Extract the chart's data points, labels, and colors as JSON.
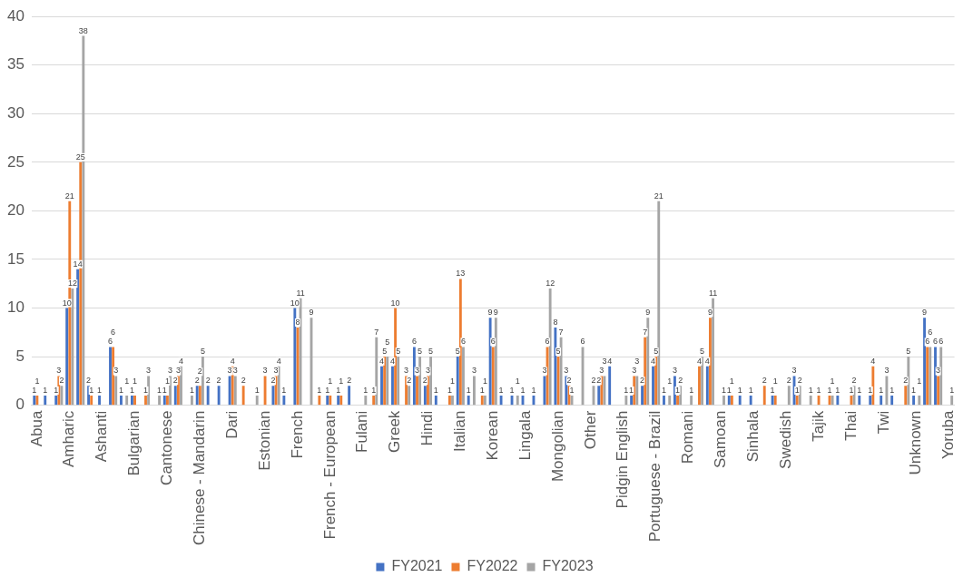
{
  "chart_data": {
    "type": "bar",
    "categories": [
      "Abua",
      null,
      null,
      "Amharic",
      null,
      null,
      "Ashanti",
      null,
      null,
      "Bulgarian",
      null,
      null,
      "Cantonese",
      null,
      null,
      "Chinese - Mandarin",
      null,
      null,
      "Dari",
      null,
      null,
      "Estonian",
      null,
      null,
      "French",
      null,
      null,
      "French - European",
      null,
      null,
      "Fulani",
      null,
      null,
      "Greek",
      null,
      null,
      "Hindi",
      null,
      null,
      "Italian",
      null,
      null,
      "Korean",
      null,
      null,
      "Lingala",
      null,
      null,
      "Mongolian",
      null,
      null,
      "Other",
      null,
      null,
      "Pidgin English",
      null,
      null,
      "Portuguese - Brazil",
      null,
      null,
      "Romani",
      null,
      null,
      "Samoan",
      null,
      null,
      "Sinhala",
      null,
      null,
      "Swedish",
      null,
      null,
      "Tajik",
      null,
      null,
      "Thai",
      null,
      null,
      "Twi",
      null,
      null,
      "Unknown",
      null,
      null,
      "Yoruba"
    ],
    "series": [
      {
        "name": "FY2021",
        "color": "#4472c4",
        "values": [
          1,
          1,
          1,
          10,
          14,
          2,
          1,
          6,
          1,
          1,
          null,
          null,
          1,
          2,
          null,
          2,
          2,
          2,
          3,
          null,
          null,
          null,
          2,
          1,
          10,
          null,
          null,
          1,
          1,
          2,
          null,
          null,
          4,
          4,
          null,
          6,
          2,
          1,
          null,
          5,
          1,
          null,
          9,
          1,
          1,
          1,
          1,
          3,
          8,
          3,
          null,
          null,
          2,
          4,
          null,
          1,
          2,
          4,
          1,
          3,
          null,
          null,
          4,
          null,
          1,
          1,
          1,
          null,
          1,
          null,
          3,
          null,
          null,
          null,
          1,
          null,
          1,
          1,
          1,
          1,
          null,
          1,
          9,
          6,
          null
        ]
      },
      {
        "name": "FY2022",
        "color": "#ed7d31",
        "values": [
          1,
          null,
          3,
          21,
          25,
          1,
          null,
          6,
          null,
          1,
          1,
          null,
          1,
          3,
          null,
          2,
          null,
          null,
          4,
          2,
          null,
          3,
          3,
          null,
          8,
          null,
          1,
          1,
          1,
          null,
          null,
          1,
          5,
          10,
          3,
          3,
          3,
          null,
          1,
          13,
          null,
          1,
          6,
          null,
          null,
          null,
          null,
          6,
          5,
          2,
          null,
          null,
          3,
          null,
          null,
          3,
          7,
          5,
          null,
          1,
          null,
          4,
          9,
          null,
          1,
          null,
          null,
          2,
          1,
          null,
          1,
          null,
          1,
          1,
          null,
          1,
          null,
          4,
          null,
          null,
          2,
          null,
          6,
          3,
          null
        ]
      },
      {
        "name": "FY2023",
        "color": "#a5a5a5",
        "values": [
          null,
          null,
          2,
          12,
          38,
          null,
          null,
          3,
          1,
          null,
          3,
          1,
          3,
          4,
          1,
          5,
          null,
          null,
          3,
          null,
          1,
          null,
          4,
          null,
          11,
          9,
          null,
          null,
          null,
          null,
          1,
          7,
          5,
          5,
          2,
          5,
          5,
          null,
          1,
          6,
          3,
          1,
          9,
          null,
          1,
          null,
          null,
          12,
          7,
          1,
          6,
          2,
          3,
          null,
          1,
          3,
          9,
          21,
          1,
          2,
          1,
          5,
          11,
          1,
          null,
          null,
          null,
          null,
          null,
          2,
          2,
          1,
          null,
          1,
          null,
          2,
          null,
          null,
          3,
          null,
          5,
          1,
          6,
          6,
          1
        ]
      }
    ],
    "ylim": [
      0,
      40
    ],
    "yticks": [
      0,
      5,
      10,
      15,
      20,
      25,
      30,
      35,
      40
    ],
    "grid": "y",
    "legend": "bottom",
    "data_labels": true
  }
}
